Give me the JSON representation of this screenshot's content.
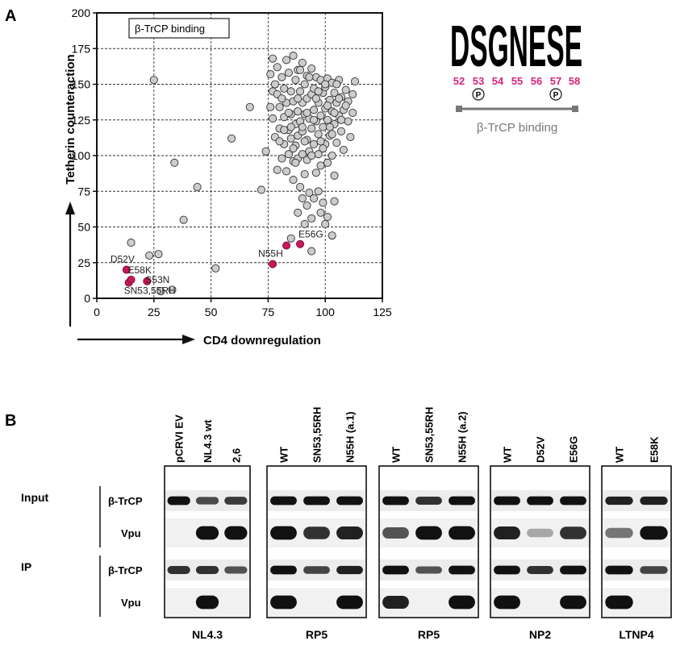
{
  "panel_a": {
    "letter": "A",
    "motif": {
      "sequence": "DSGNESE",
      "positions": [
        "52",
        "53",
        "54",
        "55",
        "56",
        "57",
        "58"
      ],
      "phospho_symbol": "P",
      "binding_label": "β-TrCP binding"
    }
  },
  "chart_data": {
    "type": "scatter",
    "xlabel": "CD4 downregulation",
    "ylabel": "Tetherin counteraction",
    "xlim": [
      0,
      125
    ],
    "ylim": [
      0,
      200
    ],
    "xticks": [
      "0",
      "25",
      "50",
      "75",
      "100",
      "125"
    ],
    "yticks": [
      "0",
      "25",
      "50",
      "75",
      "100",
      "125",
      "150",
      "175",
      "200"
    ],
    "grid": true,
    "legend": {
      "text": "β-TrCP binding",
      "placement": "top-left"
    },
    "colors": {
      "non_binding": "#cccccc",
      "binding": "#c8185a"
    },
    "series": [
      {
        "name": "background",
        "points": [
          [
            25,
            153
          ],
          [
            15,
            39
          ],
          [
            23,
            30
          ],
          [
            27,
            31
          ],
          [
            34,
            95
          ],
          [
            44,
            78
          ],
          [
            38,
            55
          ],
          [
            52,
            21
          ],
          [
            28,
            5
          ],
          [
            33,
            6
          ],
          [
            59,
            112
          ],
          [
            67,
            134
          ],
          [
            72,
            76
          ],
          [
            74,
            103
          ],
          [
            76,
            134
          ],
          [
            76,
            157
          ],
          [
            77,
            168
          ],
          [
            77,
            145
          ],
          [
            77,
            126
          ],
          [
            78,
            113
          ],
          [
            79,
            143
          ],
          [
            79,
            162
          ],
          [
            80,
            134
          ],
          [
            80,
            119
          ],
          [
            81,
            155
          ],
          [
            81,
            98
          ],
          [
            82,
            108
          ],
          [
            82,
            127
          ],
          [
            82,
            147
          ],
          [
            83,
            167
          ],
          [
            83,
            89
          ],
          [
            83,
            137
          ],
          [
            84,
            118
          ],
          [
            84,
            101
          ],
          [
            84,
            158
          ],
          [
            85,
            129
          ],
          [
            85,
            112
          ],
          [
            85,
            145
          ],
          [
            86,
            83
          ],
          [
            86,
            96
          ],
          [
            86,
            138
          ],
          [
            86,
            170
          ],
          [
            87,
            122
          ],
          [
            87,
            107
          ],
          [
            87,
            153
          ],
          [
            88,
            131
          ],
          [
            88,
            98
          ],
          [
            88,
            114
          ],
          [
            88,
            160
          ],
          [
            89,
            124
          ],
          [
            89,
            78
          ],
          [
            89,
            145
          ],
          [
            90,
            137
          ],
          [
            90,
            101
          ],
          [
            90,
            117
          ],
          [
            90,
            165
          ],
          [
            91,
            129
          ],
          [
            91,
            87
          ],
          [
            91,
            150
          ],
          [
            92,
            111
          ],
          [
            92,
            140
          ],
          [
            92,
            97
          ],
          [
            92,
            156
          ],
          [
            93,
            126
          ],
          [
            93,
            103
          ],
          [
            93,
            74
          ],
          [
            94,
            143
          ],
          [
            94,
            119
          ],
          [
            94,
            161
          ],
          [
            95,
            132
          ],
          [
            95,
            108
          ],
          [
            95,
            147
          ],
          [
            96,
            88
          ],
          [
            96,
            124
          ],
          [
            96,
            155
          ],
          [
            97,
            137
          ],
          [
            97,
            101
          ],
          [
            97,
            115
          ],
          [
            98,
            128
          ],
          [
            98,
            153
          ],
          [
            98,
            93
          ],
          [
            99,
            144
          ],
          [
            99,
            120
          ],
          [
            99,
            67
          ],
          [
            100,
            133
          ],
          [
            100,
            108
          ],
          [
            100,
            148
          ],
          [
            101,
            125
          ],
          [
            101,
            95
          ],
          [
            101,
            154
          ],
          [
            102,
            139
          ],
          [
            102,
            114
          ],
          [
            103,
            131
          ],
          [
            103,
            100
          ],
          [
            103,
            151
          ],
          [
            104,
            122
          ],
          [
            104,
            144
          ],
          [
            104,
            86
          ],
          [
            105,
            137
          ],
          [
            105,
            109
          ],
          [
            106,
            128
          ],
          [
            106,
            153
          ],
          [
            107,
            141
          ],
          [
            107,
            117
          ],
          [
            108,
            132
          ],
          [
            108,
            104
          ],
          [
            109,
            146
          ],
          [
            110,
            124
          ],
          [
            110,
            138
          ],
          [
            111,
            113
          ],
          [
            112,
            143
          ],
          [
            112,
            130
          ],
          [
            113,
            152
          ],
          [
            78,
            150
          ],
          [
            80,
            110
          ],
          [
            82,
            118
          ],
          [
            84,
            130
          ],
          [
            86,
            105
          ],
          [
            88,
            140
          ],
          [
            90,
            120
          ],
          [
            92,
            130
          ],
          [
            94,
            100
          ],
          [
            96,
            140
          ],
          [
            98,
            110
          ],
          [
            100,
            150
          ],
          [
            102,
            120
          ],
          [
            104,
            130
          ],
          [
            106,
            140
          ],
          [
            79,
            90
          ],
          [
            81,
            140
          ],
          [
            85,
            120
          ],
          [
            87,
            95
          ],
          [
            89,
            160
          ],
          [
            91,
            110
          ],
          [
            93,
            155
          ],
          [
            95,
            125
          ],
          [
            97,
            145
          ],
          [
            99,
            105
          ],
          [
            101,
            135
          ],
          [
            103,
            115
          ],
          [
            105,
            150
          ],
          [
            107,
            125
          ],
          [
            109,
            135
          ],
          [
            88,
            60
          ],
          [
            90,
            70
          ],
          [
            92,
            65
          ],
          [
            95,
            70
          ],
          [
            98,
            60
          ],
          [
            100,
            52
          ],
          [
            101,
            57
          ],
          [
            104,
            68
          ],
          [
            91,
            52
          ],
          [
            94,
            33
          ],
          [
            103,
            44
          ],
          [
            94,
            56
          ],
          [
            97,
            75
          ],
          [
            85,
            42
          ]
        ]
      },
      {
        "name": "beta_trcp_binding",
        "points": [
          [
            13,
            20
          ],
          [
            14,
            11
          ],
          [
            15,
            13
          ],
          [
            22,
            12
          ],
          [
            77,
            24
          ],
          [
            83,
            37
          ],
          [
            89,
            38
          ]
        ]
      }
    ],
    "annotations": [
      {
        "text": "D52V",
        "x": 13,
        "y": 20
      },
      {
        "text": "E58K",
        "x": 15,
        "y": 13
      },
      {
        "text": "S53N",
        "x": 22,
        "y": 12
      },
      {
        "text": "SN53,55RH",
        "x": 14,
        "y": 11
      },
      {
        "text": "N55H",
        "x": 77,
        "y": 24
      },
      {
        "text": "E56G",
        "x": 89,
        "y": 38
      }
    ]
  },
  "panel_b": {
    "letter": "B",
    "row_groups": [
      {
        "label": "Input",
        "rows": [
          "β-TrCP",
          "Vpu"
        ]
      },
      {
        "label": "IP",
        "rows": [
          "β-TrCP",
          "Vpu"
        ]
      }
    ],
    "blots": [
      {
        "name": "NL4.3",
        "lanes": [
          "pCRVI EV",
          "NL4.3 wt",
          "2,6"
        ],
        "bands": [
          [
            1,
            0.65,
            0.75
          ],
          [
            0,
            1,
            1
          ],
          [
            0.8,
            0.8,
            0.6
          ],
          [
            0,
            1,
            0
          ]
        ]
      },
      {
        "name": "RP5",
        "lanes": [
          "WT",
          "SN53,55RH",
          "N55H (a.1)"
        ],
        "bands": [
          [
            1,
            1,
            1
          ],
          [
            1,
            0.8,
            0.9
          ],
          [
            1,
            0.7,
            0.9
          ],
          [
            1,
            0,
            1
          ]
        ]
      },
      {
        "name": "RP5",
        "lanes": [
          "WT",
          "SN53,55RH",
          "N55H (a.2)"
        ],
        "bands": [
          [
            1,
            0.8,
            1
          ],
          [
            0.6,
            1,
            1
          ],
          [
            1,
            0.6,
            1
          ],
          [
            0.9,
            0,
            1
          ]
        ]
      },
      {
        "name": "NP2",
        "lanes": [
          "WT",
          "D52V",
          "E56G"
        ],
        "bands": [
          [
            1,
            1,
            1
          ],
          [
            0.9,
            0.1,
            0.8
          ],
          [
            1,
            0.8,
            1
          ],
          [
            1,
            0,
            1
          ]
        ]
      },
      {
        "name": "LTNP4",
        "lanes": [
          "WT",
          "E58K"
        ],
        "bands": [
          [
            0.9,
            0.9
          ],
          [
            0.4,
            1
          ],
          [
            1,
            0.7
          ],
          [
            1,
            0
          ]
        ]
      }
    ]
  }
}
